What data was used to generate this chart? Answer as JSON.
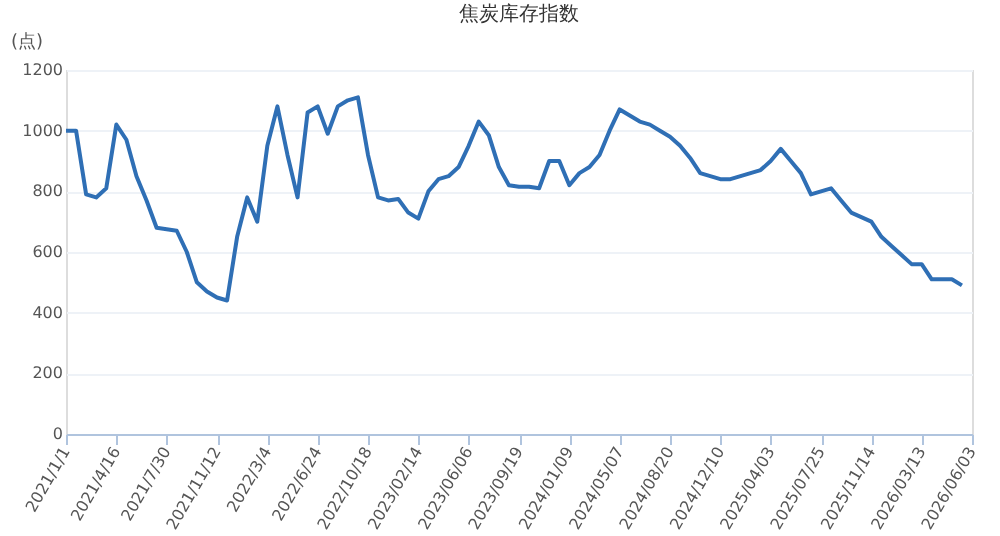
{
  "chart_data": {
    "type": "line",
    "title": "焦炭库存指数",
    "ylabel": "(点)",
    "categories": [
      "2021/1/1",
      null,
      null,
      null,
      null,
      "2021/4/16",
      null,
      null,
      null,
      null,
      "2021/7/30",
      null,
      null,
      null,
      null,
      "2021/11/12",
      null,
      null,
      null,
      null,
      "2022/3/4",
      null,
      null,
      null,
      null,
      "2022/6/24",
      null,
      null,
      null,
      null,
      "2022/10/18",
      null,
      null,
      null,
      null,
      "2023/02/14",
      null,
      null,
      null,
      null,
      "2023/06/06",
      null,
      null,
      null,
      null,
      "2023/09/19",
      null,
      null,
      null,
      null,
      "2024/01/09",
      null,
      null,
      null,
      null,
      "2024/05/07",
      null,
      null,
      null,
      null,
      "2024/08/20",
      null,
      null,
      null,
      null,
      "2024/12/10",
      null,
      null,
      null,
      null,
      "2025/04/03",
      null,
      null,
      null,
      null,
      "2025/07/25",
      null,
      null,
      null,
      null,
      "2025/11/14",
      null,
      null,
      null,
      null,
      "2026/03/13",
      null,
      null,
      null,
      null,
      "2026/06/03"
    ],
    "series": [
      {
        "color": "#2f6fb5",
        "values": [
          1000,
          1000,
          790,
          780,
          810,
          1020,
          970,
          850,
          770,
          680,
          675,
          670,
          600,
          500,
          470,
          450,
          440,
          650,
          780,
          700,
          950,
          1080,
          920,
          780,
          1060,
          1080,
          990,
          1080,
          1100,
          1110,
          920,
          780,
          770,
          775,
          730,
          710,
          800,
          840,
          850,
          880,
          950,
          1030,
          985,
          880,
          820,
          815,
          815,
          810,
          900,
          900,
          820,
          860,
          880,
          920,
          1000,
          1070,
          1050,
          1030,
          1020,
          1000,
          980,
          950,
          910,
          860,
          850,
          840,
          840,
          850,
          860,
          870,
          900,
          940,
          900,
          860,
          790,
          800,
          810,
          770,
          730,
          715,
          700,
          650,
          620,
          590,
          560,
          560,
          510,
          510,
          510,
          490,
          null
        ]
      }
    ],
    "ylim": [
      0,
      1200
    ],
    "yticks": [
      0,
      200,
      400,
      600,
      800,
      1000,
      1200
    ],
    "grid": "y",
    "legend": false,
    "marker": "none",
    "line_style": "solid"
  }
}
